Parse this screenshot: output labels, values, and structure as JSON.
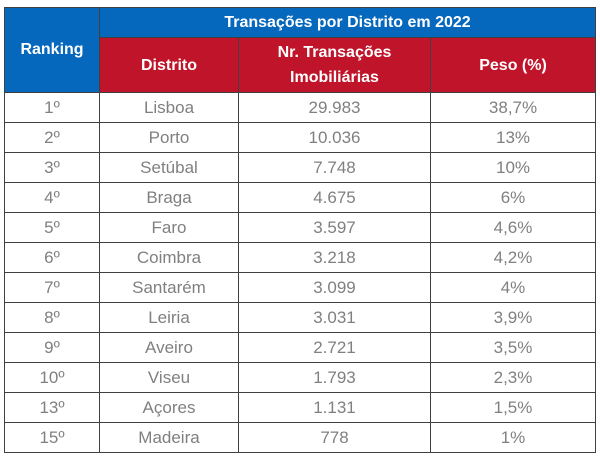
{
  "table": {
    "title": "Transações por Distrito em 2022",
    "headers": {
      "ranking": "Ranking",
      "distrito": "Distrito",
      "transacoes_line1": "Nr. Transações",
      "transacoes_line2": "Imobiliárias",
      "peso": "Peso (%)"
    },
    "rows": [
      {
        "ranking": "1º",
        "distrito": "Lisboa",
        "transacoes": "29.983",
        "peso": "38,7%"
      },
      {
        "ranking": "2º",
        "distrito": "Porto",
        "transacoes": "10.036",
        "peso": "13%"
      },
      {
        "ranking": "3º",
        "distrito": "Setúbal",
        "transacoes": "7.748",
        "peso": "10%"
      },
      {
        "ranking": "4º",
        "distrito": "Braga",
        "transacoes": "4.675",
        "peso": "6%"
      },
      {
        "ranking": "5º",
        "distrito": "Faro",
        "transacoes": "3.597",
        "peso": "4,6%"
      },
      {
        "ranking": "6º",
        "distrito": "Coimbra",
        "transacoes": "3.218",
        "peso": "4,2%"
      },
      {
        "ranking": "7º",
        "distrito": "Santarém",
        "transacoes": "3.099",
        "peso": "4%"
      },
      {
        "ranking": "8º",
        "distrito": "Leiria",
        "transacoes": "3.031",
        "peso": "3,9%"
      },
      {
        "ranking": "9º",
        "distrito": "Aveiro",
        "transacoes": "2.721",
        "peso": "3,5%"
      },
      {
        "ranking": "10º",
        "distrito": "Viseu",
        "transacoes": "1.793",
        "peso": "2,3%"
      },
      {
        "ranking": "13º",
        "distrito": "Açores",
        "transacoes": "1.131",
        "peso": "1,5%"
      },
      {
        "ranking": "15º",
        "distrito": "Madeira",
        "transacoes": "778",
        "peso": "1%"
      }
    ]
  }
}
